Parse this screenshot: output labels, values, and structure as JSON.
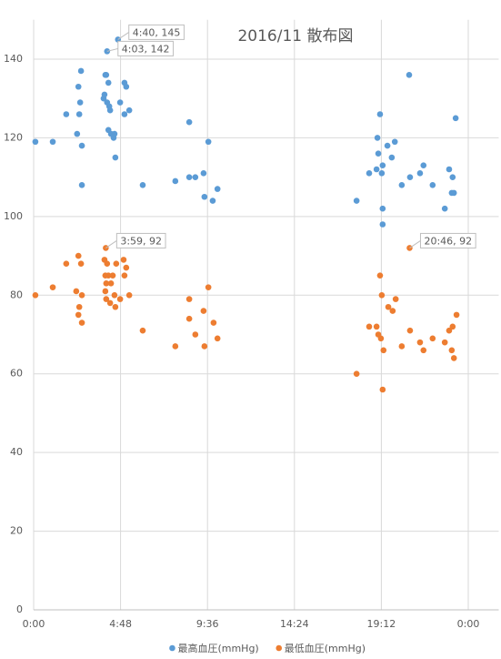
{
  "chart_data": {
    "type": "scatter",
    "title": "2016/11 散布図",
    "xlim": [
      0,
      1.07
    ],
    "ylim": [
      0,
      150
    ],
    "xticks": [
      {
        "value": 0,
        "label": "0:00"
      },
      {
        "value": 0.2,
        "label": "4:48"
      },
      {
        "value": 0.4,
        "label": "9:36"
      },
      {
        "value": 0.6,
        "label": "14:24"
      },
      {
        "value": 0.8,
        "label": "19:12"
      },
      {
        "value": 1,
        "label": "0:00"
      }
    ],
    "yticks": [
      0,
      20,
      40,
      60,
      80,
      100,
      120,
      140
    ],
    "grid": true,
    "legend": "bottom",
    "series": [
      {
        "name": "最高血圧(mmHg)",
        "color": "#5b9bd5",
        "x": [
          0.194,
          0.169,
          0.004,
          0.044,
          0.075,
          0.1,
          0.103,
          0.105,
          0.107,
          0.109,
          0.111,
          0.111,
          0.161,
          0.163,
          0.165,
          0.167,
          0.169,
          0.172,
          0.172,
          0.174,
          0.176,
          0.178,
          0.184,
          0.186,
          0.188,
          0.199,
          0.209,
          0.213,
          0.209,
          0.22,
          0.251,
          0.326,
          0.358,
          0.358,
          0.372,
          0.391,
          0.393,
          0.402,
          0.412,
          0.423,
          0.743,
          0.772,
          0.789,
          0.791,
          0.793,
          0.797,
          0.801,
          0.803,
          0.803,
          0.803,
          0.814,
          0.824,
          0.831,
          0.847,
          0.866,
          0.864,
          0.889,
          0.897,
          0.918,
          0.946,
          0.956,
          0.962,
          0.964,
          0.967,
          0.971
        ],
        "values": [
          145,
          142,
          119,
          119,
          126,
          121,
          133,
          126,
          129,
          137,
          118,
          108,
          130,
          131,
          136,
          136,
          129,
          134,
          122,
          128,
          127,
          121,
          120,
          121,
          115,
          129,
          134,
          133,
          126,
          127,
          108,
          109,
          124,
          110,
          110,
          111,
          105,
          119,
          104,
          107,
          104,
          111,
          112,
          120,
          116,
          126,
          111,
          113,
          102,
          98,
          118,
          115,
          119,
          108,
          110,
          136,
          111,
          113,
          108,
          102,
          112,
          106,
          110,
          106,
          125
        ],
        "value_labels": [
          "4:40, 145",
          "4:03, 142",
          null,
          null,
          null,
          null,
          null,
          null,
          null,
          null,
          null,
          null,
          null,
          null,
          null,
          null,
          null,
          null,
          null,
          null,
          null,
          null,
          null,
          null,
          null,
          null,
          null,
          null,
          null,
          null,
          null,
          null,
          null,
          null,
          null,
          null,
          null,
          null,
          null,
          null,
          null,
          null,
          null,
          null,
          null,
          null,
          null,
          null,
          null,
          null,
          null,
          null,
          null,
          null,
          null,
          null,
          null,
          null,
          null,
          null,
          null,
          null,
          null,
          null,
          null
        ]
      },
      {
        "name": "最低血圧(mmHg)",
        "color": "#ed7d31",
        "x": [
          0.166,
          0.865,
          0.004,
          0.044,
          0.075,
          0.098,
          0.103,
          0.105,
          0.109,
          0.111,
          0.111,
          0.103,
          0.163,
          0.165,
          0.165,
          0.167,
          0.167,
          0.169,
          0.172,
          0.176,
          0.178,
          0.182,
          0.186,
          0.188,
          0.19,
          0.199,
          0.207,
          0.209,
          0.213,
          0.22,
          0.251,
          0.326,
          0.358,
          0.358,
          0.372,
          0.391,
          0.393,
          0.402,
          0.414,
          0.423,
          0.743,
          0.772,
          0.789,
          0.793,
          0.797,
          0.799,
          0.801,
          0.803,
          0.805,
          0.816,
          0.826,
          0.833,
          0.847,
          0.866,
          0.889,
          0.897,
          0.918,
          0.946,
          0.956,
          0.962,
          0.964,
          0.967,
          0.973
        ],
        "values": [
          92,
          92,
          80,
          82,
          88,
          81,
          90,
          77,
          88,
          80,
          73,
          75,
          89,
          85,
          81,
          83,
          79,
          88,
          85,
          78,
          83,
          85,
          80,
          77,
          88,
          79,
          89,
          85,
          87,
          80,
          71,
          67,
          79,
          74,
          70,
          76,
          67,
          82,
          73,
          69,
          60,
          72,
          72,
          70,
          85,
          69,
          80,
          56,
          66,
          77,
          76,
          79,
          67,
          71,
          68,
          66,
          69,
          68,
          71,
          66,
          72,
          64,
          75
        ],
        "value_labels": [
          "3:59, 92",
          "20:46, 92",
          null,
          null,
          null,
          null,
          null,
          null,
          null,
          null,
          null,
          null,
          null,
          null,
          null,
          null,
          null,
          null,
          null,
          null,
          null,
          null,
          null,
          null,
          null,
          null,
          null,
          null,
          null,
          null,
          null,
          null,
          null,
          null,
          null,
          null,
          null,
          null,
          null,
          null,
          null,
          null,
          null,
          null,
          null,
          null,
          null,
          null,
          null,
          null,
          null,
          null,
          null,
          null,
          null,
          null,
          null,
          null,
          null,
          null,
          null,
          null,
          null
        ]
      }
    ]
  }
}
